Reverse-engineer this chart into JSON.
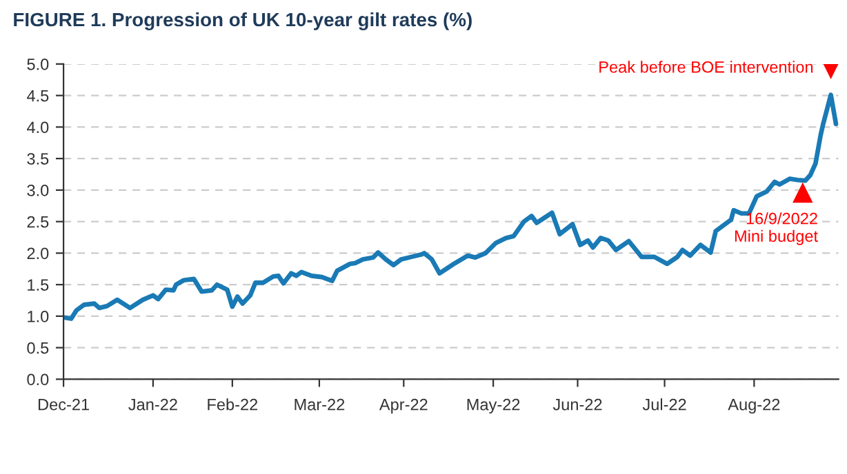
{
  "chart_data": {
    "type": "line",
    "title": "FIGURE 1. Progression of UK 10-year gilt rates (%)",
    "series": [
      {
        "color": "#1a7ab5",
        "x": [
          "2021-12-01",
          "2021-12-04",
          "2021-12-06",
          "2021-12-09",
          "2021-12-13",
          "2021-12-15",
          "2021-12-18",
          "2021-12-22",
          "2021-12-27",
          "2022-01-01",
          "2022-01-05",
          "2022-01-07",
          "2022-01-10",
          "2022-01-13",
          "2022-01-14",
          "2022-01-17",
          "2022-01-21",
          "2022-01-24",
          "2022-01-28",
          "2022-01-30",
          "2022-02-03",
          "2022-02-05",
          "2022-02-07",
          "2022-02-09",
          "2022-02-12",
          "2022-02-14",
          "2022-02-17",
          "2022-02-21",
          "2022-02-23",
          "2022-02-25",
          "2022-02-28",
          "2022-03-02",
          "2022-03-04",
          "2022-03-08",
          "2022-03-12",
          "2022-03-16",
          "2022-03-18",
          "2022-03-23",
          "2022-03-25",
          "2022-03-28",
          "2022-04-01",
          "2022-04-03",
          "2022-04-06",
          "2022-04-09",
          "2022-04-12",
          "2022-04-16",
          "2022-04-20",
          "2022-04-21",
          "2022-04-24",
          "2022-04-27",
          "2022-04-30",
          "2022-05-03",
          "2022-05-08",
          "2022-05-11",
          "2022-05-15",
          "2022-05-19",
          "2022-05-23",
          "2022-05-26",
          "2022-05-30",
          "2022-06-02",
          "2022-06-04",
          "2022-06-07",
          "2022-06-10",
          "2022-06-13",
          "2022-06-18",
          "2022-06-21",
          "2022-06-24",
          "2022-06-26",
          "2022-06-29",
          "2022-07-02",
          "2022-07-05",
          "2022-07-10",
          "2022-07-15",
          "2022-07-20",
          "2022-07-25",
          "2022-07-29",
          "2022-07-31",
          "2022-08-03",
          "2022-08-07",
          "2022-08-11",
          "2022-08-13",
          "2022-08-19",
          "2022-08-20",
          "2022-08-23",
          "2022-08-26",
          "2022-08-29",
          "2022-09-02",
          "2022-09-05",
          "2022-09-07",
          "2022-09-11",
          "2022-09-14",
          "2022-09-17",
          "2022-09-19",
          "2022-09-21",
          "2022-09-23",
          "2022-09-24",
          "2022-09-27",
          "2022-09-29"
        ],
        "values": [
          0.98,
          0.96,
          1.09,
          1.18,
          1.2,
          1.13,
          1.16,
          1.26,
          1.13,
          1.26,
          1.33,
          1.27,
          1.42,
          1.41,
          1.5,
          1.57,
          1.59,
          1.39,
          1.41,
          1.5,
          1.42,
          1.15,
          1.31,
          1.2,
          1.33,
          1.53,
          1.53,
          1.63,
          1.64,
          1.52,
          1.68,
          1.64,
          1.7,
          1.64,
          1.62,
          1.56,
          1.72,
          1.83,
          1.84,
          1.9,
          1.93,
          2.01,
          1.9,
          1.81,
          1.9,
          1.94,
          1.98,
          2.0,
          1.9,
          1.68,
          1.76,
          1.84,
          1.96,
          1.93,
          2.0,
          2.16,
          2.24,
          2.27,
          2.5,
          2.59,
          2.48,
          2.56,
          2.64,
          2.3,
          2.46,
          2.13,
          2.2,
          2.09,
          2.24,
          2.2,
          2.05,
          2.19,
          1.94,
          1.94,
          1.83,
          1.94,
          2.05,
          1.96,
          2.13,
          2.01,
          2.35,
          2.53,
          2.68,
          2.63,
          2.63,
          2.9,
          2.98,
          3.13,
          3.09,
          3.18,
          3.16,
          3.15,
          3.24,
          3.42,
          3.87,
          4.05,
          4.51,
          4.05
        ]
      }
    ],
    "xlim": [
      "2021-12-01",
      "2022-09-30"
    ],
    "xticks": [
      {
        "value": "2021-12-01",
        "label": "Dec-21"
      },
      {
        "value": "2022-01-05",
        "label": "Jan-22"
      },
      {
        "value": "2022-02-05",
        "label": "Feb-22"
      },
      {
        "value": "2022-03-11",
        "label": "Mar-22"
      },
      {
        "value": "2022-04-13",
        "label": "Apr-22"
      },
      {
        "value": "2022-05-18",
        "label": "May-22"
      },
      {
        "value": "2022-06-20",
        "label": "Jun-22"
      },
      {
        "value": "2022-07-24",
        "label": "Jul-22"
      },
      {
        "value": "2022-08-28",
        "label": "Aug-22"
      }
    ],
    "ylim": [
      0,
      5
    ],
    "yticks": [
      {
        "value": 0,
        "label": "0.0"
      },
      {
        "value": 0.5,
        "label": "0.5"
      },
      {
        "value": 1,
        "label": "1.0"
      },
      {
        "value": 1.5,
        "label": "1.5"
      },
      {
        "value": 2,
        "label": "2.0"
      },
      {
        "value": 2.5,
        "label": "2.5"
      },
      {
        "value": 3,
        "label": "3.0"
      },
      {
        "value": 3.5,
        "label": "3.5"
      },
      {
        "value": 4,
        "label": "4.0"
      },
      {
        "value": 4.5,
        "label": "4.5"
      },
      {
        "value": 5,
        "label": "5.0"
      }
    ],
    "grid": "y",
    "annotations": [
      {
        "text": "Peak before BOE intervention",
        "x": "2022-09-27",
        "y": 4.51
      },
      {
        "text": "16/9/2022\nMini budget",
        "x": "2022-09-16",
        "y": 3.15
      }
    ]
  }
}
